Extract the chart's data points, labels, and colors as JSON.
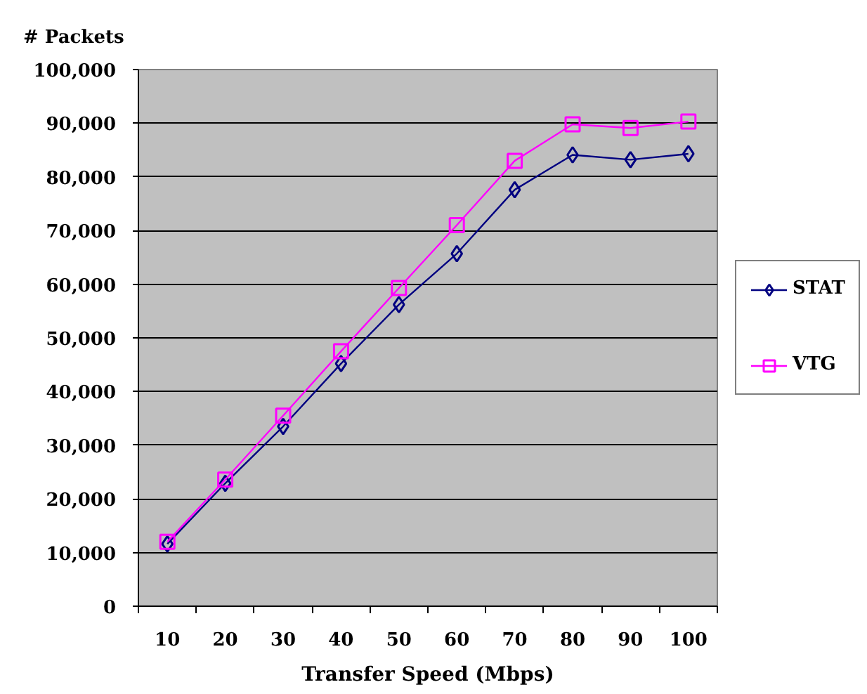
{
  "chart_data": {
    "type": "line",
    "ylabel": "# Packets",
    "xlabel": "Transfer Speed (Mbps)",
    "categories": [
      "10",
      "20",
      "30",
      "40",
      "50",
      "60",
      "70",
      "80",
      "90",
      "100"
    ],
    "ylim": [
      0,
      100000
    ],
    "yticks": [
      0,
      {
        "value": 10000,
        "label": "10,000"
      },
      {
        "value": 20000,
        "label": "20,000"
      },
      {
        "value": 30000,
        "label": "30,000"
      },
      {
        "value": 40000,
        "label": "40,000"
      },
      {
        "value": 50000,
        "label": "50,000"
      },
      {
        "value": 60000,
        "label": "60,000"
      },
      {
        "value": 70000,
        "label": "70,000"
      },
      {
        "value": 80000,
        "label": "80,000"
      },
      {
        "value": 90000,
        "label": "90,000"
      },
      {
        "value": 100000,
        "label": "100,000"
      }
    ],
    "grid": "y",
    "legend": "right",
    "line_style": "solid",
    "series": [
      {
        "name": "STAT",
        "color": "#000080",
        "marker": "diamond",
        "values": [
          11600,
          22900,
          33500,
          45200,
          56200,
          65700,
          77600,
          84100,
          83200,
          84300
        ]
      },
      {
        "name": "VTG",
        "color": "#ff00ff",
        "marker": "square",
        "values": [
          12000,
          23600,
          35500,
          47500,
          59300,
          71000,
          83000,
          89800,
          89100,
          90300
        ]
      }
    ]
  }
}
